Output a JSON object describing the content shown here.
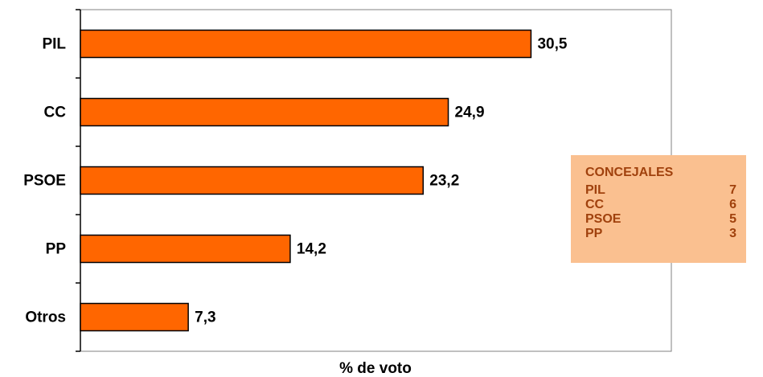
{
  "chart_data": {
    "type": "barh",
    "categories": [
      "PIL",
      "CC",
      "PSOE",
      "PP",
      "Otros"
    ],
    "values": [
      30.5,
      24.9,
      23.2,
      14.2,
      7.3
    ],
    "value_labels": [
      "30,5",
      "24,9",
      "23,2",
      "14,2",
      "7,3"
    ],
    "color": "#ff6600",
    "xlim": [
      0,
      40
    ],
    "xlabel": "% de voto",
    "annotation": {
      "title": "CONCEJALES",
      "rows": [
        {
          "label": "PIL",
          "value": 7
        },
        {
          "label": "CC",
          "value": 6
        },
        {
          "label": "PSOE",
          "value": 5
        },
        {
          "label": "PP",
          "value": 3
        }
      ],
      "color": "#fac090",
      "text_color": "#a0410d"
    }
  }
}
